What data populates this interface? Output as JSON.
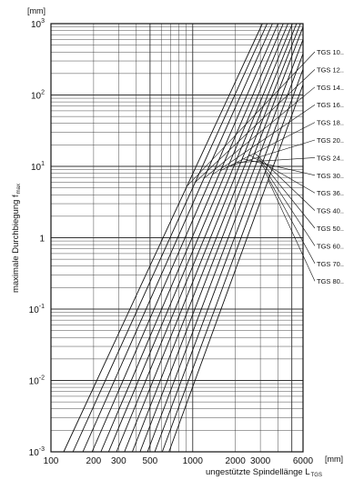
{
  "chart_data": {
    "type": "line",
    "title": "",
    "x_scale": "log",
    "y_scale": "log",
    "xlim": [
      100,
      6000
    ],
    "ylim": [
      0.001,
      1000
    ],
    "grid": true,
    "y_unit": "[mm]",
    "x_unit": "[mm]",
    "ylabel": {
      "text": "maximale Durchbiegung f",
      "sub": "max"
    },
    "xlabel": {
      "text": "ungestützte Spindellänge L",
      "sub": "TGS"
    },
    "x_ticks": [
      {
        "value": 100,
        "label": "100"
      },
      {
        "value": 200,
        "label": "200"
      },
      {
        "value": 300,
        "label": "300"
      },
      {
        "value": 500,
        "label": "500"
      },
      {
        "value": 1000,
        "label": "1000"
      },
      {
        "value": 2000,
        "label": "2000"
      },
      {
        "value": 3000,
        "label": "3000"
      },
      {
        "value": 6000,
        "label": "6000"
      }
    ],
    "y_ticks": [
      {
        "value": 0.001,
        "base": "10",
        "exp": "-3"
      },
      {
        "value": 0.01,
        "base": "10",
        "exp": "-2"
      },
      {
        "value": 0.1,
        "base": "10",
        "exp": "-1"
      },
      {
        "value": 1,
        "base": "1",
        "exp": ""
      },
      {
        "value": 10,
        "base": "10",
        "exp": "1"
      },
      {
        "value": 100,
        "base": "10",
        "exp": "2"
      },
      {
        "value": 1000,
        "base": "10",
        "exp": "3"
      }
    ],
    "series": [
      {
        "name": "TGS 10..",
        "points": [
          [
            123,
            0.001
          ],
          [
            3100,
            1000
          ]
        ]
      },
      {
        "name": "TGS 12..",
        "points": [
          [
            143,
            0.001
          ],
          [
            3350,
            1000
          ]
        ]
      },
      {
        "name": "TGS 14..",
        "points": [
          [
            168,
            0.001
          ],
          [
            3650,
            1000
          ]
        ]
      },
      {
        "name": "TGS 16..",
        "points": [
          [
            195,
            0.001
          ],
          [
            4000,
            1000
          ]
        ]
      },
      {
        "name": "TGS 18..",
        "points": [
          [
            225,
            0.001
          ],
          [
            4350,
            1000
          ]
        ]
      },
      {
        "name": "TGS 20..",
        "points": [
          [
            255,
            0.001
          ],
          [
            4700,
            1000
          ]
        ]
      },
      {
        "name": "TGS 24..",
        "points": [
          [
            290,
            0.001
          ],
          [
            5050,
            1000
          ]
        ]
      },
      {
        "name": "TGS 30..",
        "points": [
          [
            330,
            0.001
          ],
          [
            5400,
            1000
          ]
        ]
      },
      {
        "name": "TGS 36..",
        "points": [
          [
            375,
            0.001
          ],
          [
            5750,
            1000
          ]
        ]
      },
      {
        "name": "TGS 40..",
        "points": [
          [
            425,
            0.001
          ],
          [
            6000,
            900
          ]
        ]
      },
      {
        "name": "TGS 50..",
        "points": [
          [
            480,
            0.001
          ],
          [
            6000,
            600
          ]
        ]
      },
      {
        "name": "TGS 60..",
        "points": [
          [
            540,
            0.001
          ],
          [
            6000,
            380
          ]
        ]
      },
      {
        "name": "TGS 70..",
        "points": [
          [
            610,
            0.001
          ],
          [
            6000,
            230
          ]
        ]
      },
      {
        "name": "TGS 80..",
        "points": [
          [
            680,
            0.001
          ],
          [
            6000,
            140
          ]
        ]
      }
    ]
  }
}
